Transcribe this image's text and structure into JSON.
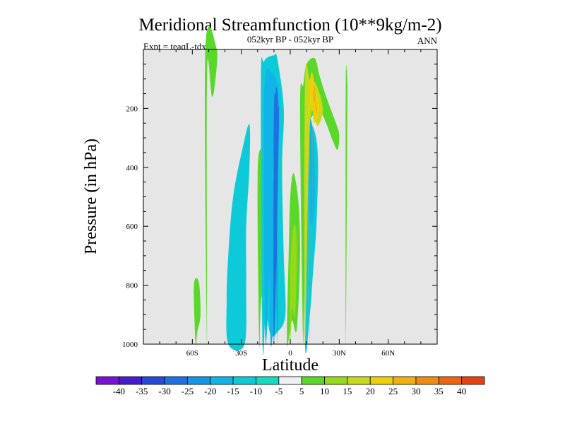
{
  "chart_data": {
    "type": "contour",
    "title": "Meridional Streamfunction (10**9kg/m-2)",
    "subtitle_left": "Expt = teaqL-tdxoL",
    "subtitle_center": "052kyr BP - 052kyr BP",
    "subtitle_right": "ANN",
    "xlabel": "Latitude",
    "ylabel": "Pressure (in hPa)",
    "xlim": [
      -90,
      90
    ],
    "ylim": [
      1000,
      0
    ],
    "x_ticks": [
      {
        "value": -60,
        "label": "60S"
      },
      {
        "value": -30,
        "label": "30S"
      },
      {
        "value": 0,
        "label": "0"
      },
      {
        "value": 30,
        "label": "30N"
      },
      {
        "value": 60,
        "label": "60N"
      }
    ],
    "y_ticks": [
      {
        "value": 200,
        "label": "200"
      },
      {
        "value": 400,
        "label": "400"
      },
      {
        "value": 600,
        "label": "600"
      },
      {
        "value": 800,
        "label": "800"
      },
      {
        "value": 1000,
        "label": "1000"
      }
    ],
    "background_color": "#e6e6e6",
    "colorbar": {
      "colors": [
        "#7a12d6",
        "#4a1ad0",
        "#2848d8",
        "#1e72e0",
        "#1496e6",
        "#10b4e6",
        "#0ecad8",
        "#14dcc0",
        "#f0f0f0",
        "#5ad82a",
        "#96d81a",
        "#c8d81a",
        "#ecd00c",
        "#f0b010",
        "#ec8c12",
        "#ec6612",
        "#e44412"
      ],
      "labels": [
        "-40",
        "-35",
        "-30",
        "-25",
        "-20",
        "-15",
        "-10",
        "-5",
        "5",
        "10",
        "15",
        "20",
        "25",
        "30",
        "35",
        "40"
      ]
    },
    "features": [
      {
        "level": -10,
        "points": [
          [
            -38,
            1000
          ],
          [
            -39,
            850
          ],
          [
            -38,
            700
          ],
          [
            -35,
            500
          ],
          [
            -29,
            330
          ],
          [
            -25,
            255
          ],
          [
            -25,
            400
          ],
          [
            -27,
            600
          ],
          [
            -27,
            800
          ],
          [
            -28,
            1000
          ]
        ]
      },
      {
        "level": 5,
        "points": [
          [
            -58,
            1000
          ],
          [
            -59,
            800
          ],
          [
            -56,
            790
          ],
          [
            -55,
            900
          ],
          [
            -57,
            960
          ]
        ]
      },
      {
        "level": 5,
        "points": [
          [
            -51,
            1000
          ],
          [
            -52,
            0
          ],
          [
            -45,
            0
          ],
          [
            -46,
            110
          ],
          [
            -48,
            160
          ],
          [
            -51,
            80
          ]
        ]
      },
      {
        "level": 5,
        "points": [
          [
            -19,
            1000
          ],
          [
            -20,
            430
          ],
          [
            -17,
            325
          ],
          [
            -13,
            280
          ],
          [
            -12,
            380
          ],
          [
            -14,
            600
          ],
          [
            -15,
            760
          ],
          [
            -18,
            860
          ]
        ]
      },
      {
        "level": -10,
        "points": [
          [
            -17,
            1000
          ],
          [
            -18,
            120
          ],
          [
            -16,
            40
          ],
          [
            -10,
            20
          ],
          [
            -8,
            30
          ],
          [
            -4,
            200
          ],
          [
            -5,
            400
          ],
          [
            -4,
            700
          ],
          [
            -3,
            900
          ],
          [
            -8,
            960
          ],
          [
            -12,
            970
          ],
          [
            -15,
            900
          ]
        ]
      },
      {
        "level": -15,
        "points": [
          [
            -12,
            1000
          ],
          [
            -13,
            480
          ],
          [
            -12,
            440
          ],
          [
            -10,
            460
          ],
          [
            -8,
            600
          ],
          [
            -9,
            800
          ]
        ]
      },
      {
        "level": -15,
        "points": [
          [
            -15,
            1000
          ],
          [
            -16,
            160
          ],
          [
            -11,
            80
          ],
          [
            -7,
            150
          ],
          [
            -7,
            300
          ],
          [
            -10,
            320
          ]
        ]
      },
      {
        "level": -25,
        "points": [
          [
            -10,
            1000
          ],
          [
            -10,
            210
          ],
          [
            -8,
            200
          ],
          [
            -7,
            270
          ]
        ]
      },
      {
        "level": -25,
        "points": [
          [
            -8,
            1000
          ],
          [
            -9,
            180
          ],
          [
            -7,
            210
          ],
          [
            -8,
            250
          ]
        ]
      },
      {
        "level": 5,
        "points": [
          [
            -2,
            1000
          ],
          [
            -1,
            700
          ],
          [
            0,
            500
          ],
          [
            2,
            420
          ],
          [
            5,
            520
          ],
          [
            6,
            700
          ],
          [
            4,
            950
          ],
          [
            1,
            920
          ]
        ]
      },
      {
        "level": 10,
        "points": [
          [
            0,
            1000
          ],
          [
            0,
            750
          ],
          [
            2,
            600
          ],
          [
            4,
            650
          ],
          [
            3,
            900
          ],
          [
            1,
            880
          ]
        ]
      },
      {
        "level": -10,
        "points": [
          [
            9,
            1000
          ],
          [
            8,
            300
          ],
          [
            11,
            250
          ],
          [
            15,
            280
          ],
          [
            17,
            380
          ],
          [
            16,
            600
          ],
          [
            14,
            750
          ],
          [
            12,
            900
          ]
        ]
      },
      {
        "level": -15,
        "points": [
          [
            12,
            1000
          ],
          [
            11,
            300
          ],
          [
            14,
            280
          ],
          [
            15,
            500
          ],
          [
            13,
            600
          ],
          [
            11,
            550
          ]
        ]
      },
      {
        "level": 5,
        "points": [
          [
            8,
            1000
          ],
          [
            6,
            200
          ],
          [
            8,
            120
          ],
          [
            10,
            50
          ],
          [
            15,
            30
          ],
          [
            18,
            90
          ],
          [
            22,
            160
          ],
          [
            28,
            250
          ],
          [
            30,
            290
          ],
          [
            29,
            340
          ],
          [
            26,
            310
          ],
          [
            22,
            250
          ],
          [
            18,
            210
          ],
          [
            13,
            230
          ],
          [
            11,
            270
          ],
          [
            9,
            300
          ]
        ]
      },
      {
        "level": 15,
        "points": [
          [
            9,
            1000
          ],
          [
            9,
            120
          ],
          [
            12,
            100
          ],
          [
            16,
            120
          ],
          [
            20,
            200
          ],
          [
            17,
            260
          ],
          [
            12,
            260
          ]
        ]
      },
      {
        "level": 20,
        "points": [
          [
            11,
            1000
          ],
          [
            12,
            140
          ],
          [
            16,
            150
          ],
          [
            18,
            200
          ],
          [
            15,
            250
          ],
          [
            12,
            230
          ]
        ]
      },
      {
        "level": 25,
        "points": [
          [
            13,
            1000
          ],
          [
            14,
            180
          ],
          [
            16,
            190
          ],
          [
            16,
            220
          ],
          [
            14,
            230
          ]
        ]
      },
      {
        "level": 5,
        "points": [
          [
            34,
            1000
          ],
          [
            34,
            120
          ],
          [
            35,
            120
          ],
          [
            35,
            170
          ]
        ]
      }
    ]
  }
}
